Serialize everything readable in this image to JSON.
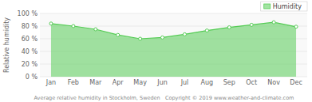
{
  "chart_data": {
    "type": "area",
    "categories": [
      "Jan",
      "Feb",
      "Mar",
      "Apr",
      "May",
      "Jun",
      "Jul",
      "Aug",
      "Sep",
      "Oct",
      "Nov",
      "Dec"
    ],
    "series": [
      {
        "name": "Humidity",
        "color": "#55cc55",
        "marker": "circle",
        "values": [
          84,
          80,
          75,
          66,
          60,
          62,
          67,
          73,
          78,
          82,
          86,
          79
        ]
      }
    ],
    "ylim": [
      0,
      100
    ],
    "yticks": [
      {
        "value": 0,
        "label": "0 %"
      },
      {
        "value": 20,
        "label": "20 %"
      },
      {
        "value": 40,
        "label": "40 %"
      },
      {
        "value": 60,
        "label": "60 %"
      },
      {
        "value": 80,
        "label": "80 %"
      },
      {
        "value": 100,
        "label": "100 %"
      }
    ],
    "ylabel": "Relative humidity",
    "xlabel": "Average relative humidity in Stockholm, Sweden   Copyright © 2019 www.weather-and-climate.com",
    "grid": true,
    "legend": "top-right"
  }
}
